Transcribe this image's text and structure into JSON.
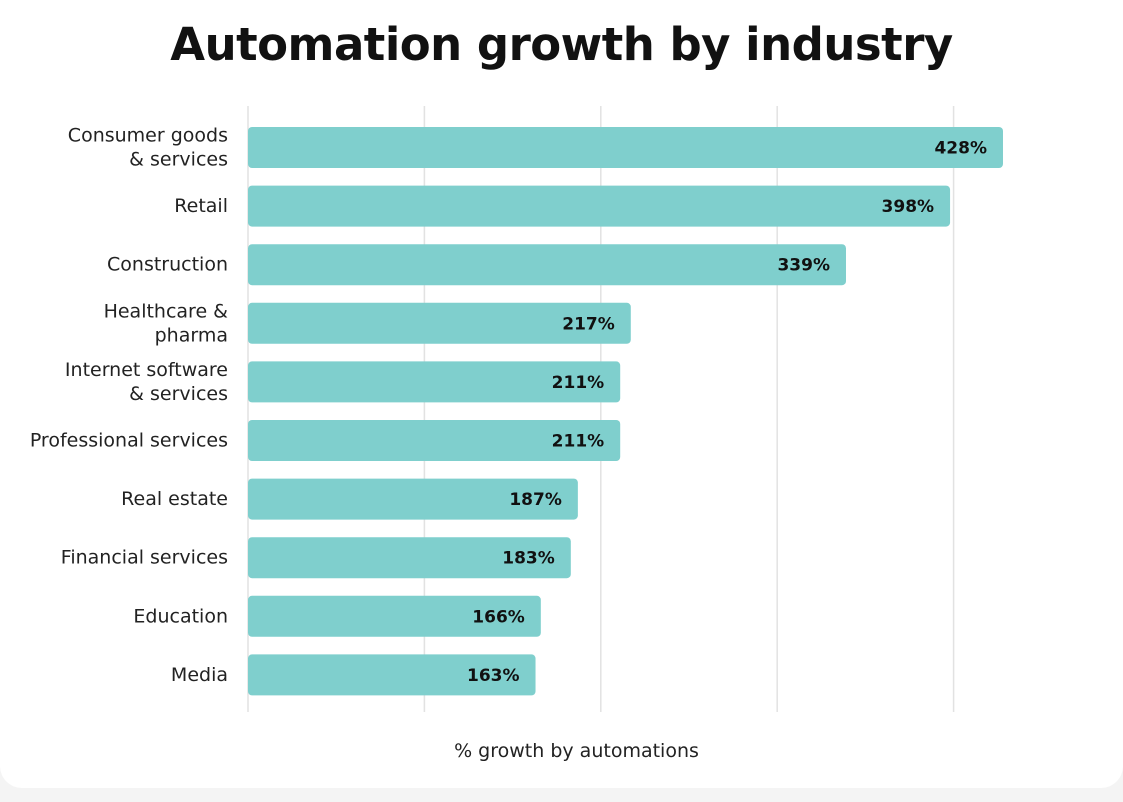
{
  "chart_data": {
    "type": "bar",
    "orientation": "horizontal",
    "title": "Automation growth by industry",
    "xlabel": "% growth by automations",
    "ylabel": "",
    "categories": [
      "Consumer goods & services",
      "Retail",
      "Construction",
      "Healthcare & pharma",
      "Internet software & services",
      "Professional services",
      "Real estate",
      "Financial services",
      "Education",
      "Media"
    ],
    "category_lines": [
      [
        "Consumer goods",
        "& services"
      ],
      [
        "Retail"
      ],
      [
        "Construction"
      ],
      [
        "Healthcare &",
        "pharma"
      ],
      [
        "Internet software",
        "& services"
      ],
      [
        "Professional services"
      ],
      [
        "Real estate"
      ],
      [
        "Financial services"
      ],
      [
        "Education"
      ],
      [
        "Media"
      ]
    ],
    "values": [
      428,
      398,
      339,
      217,
      211,
      211,
      187,
      183,
      166,
      163
    ],
    "value_labels": [
      "428%",
      "398%",
      "339%",
      "217%",
      "211%",
      "211%",
      "187%",
      "183%",
      "166%",
      "163%"
    ],
    "xlim": [
      0,
      500
    ],
    "grid": true,
    "legend": "none",
    "bar_color": "#7fcfcd"
  }
}
